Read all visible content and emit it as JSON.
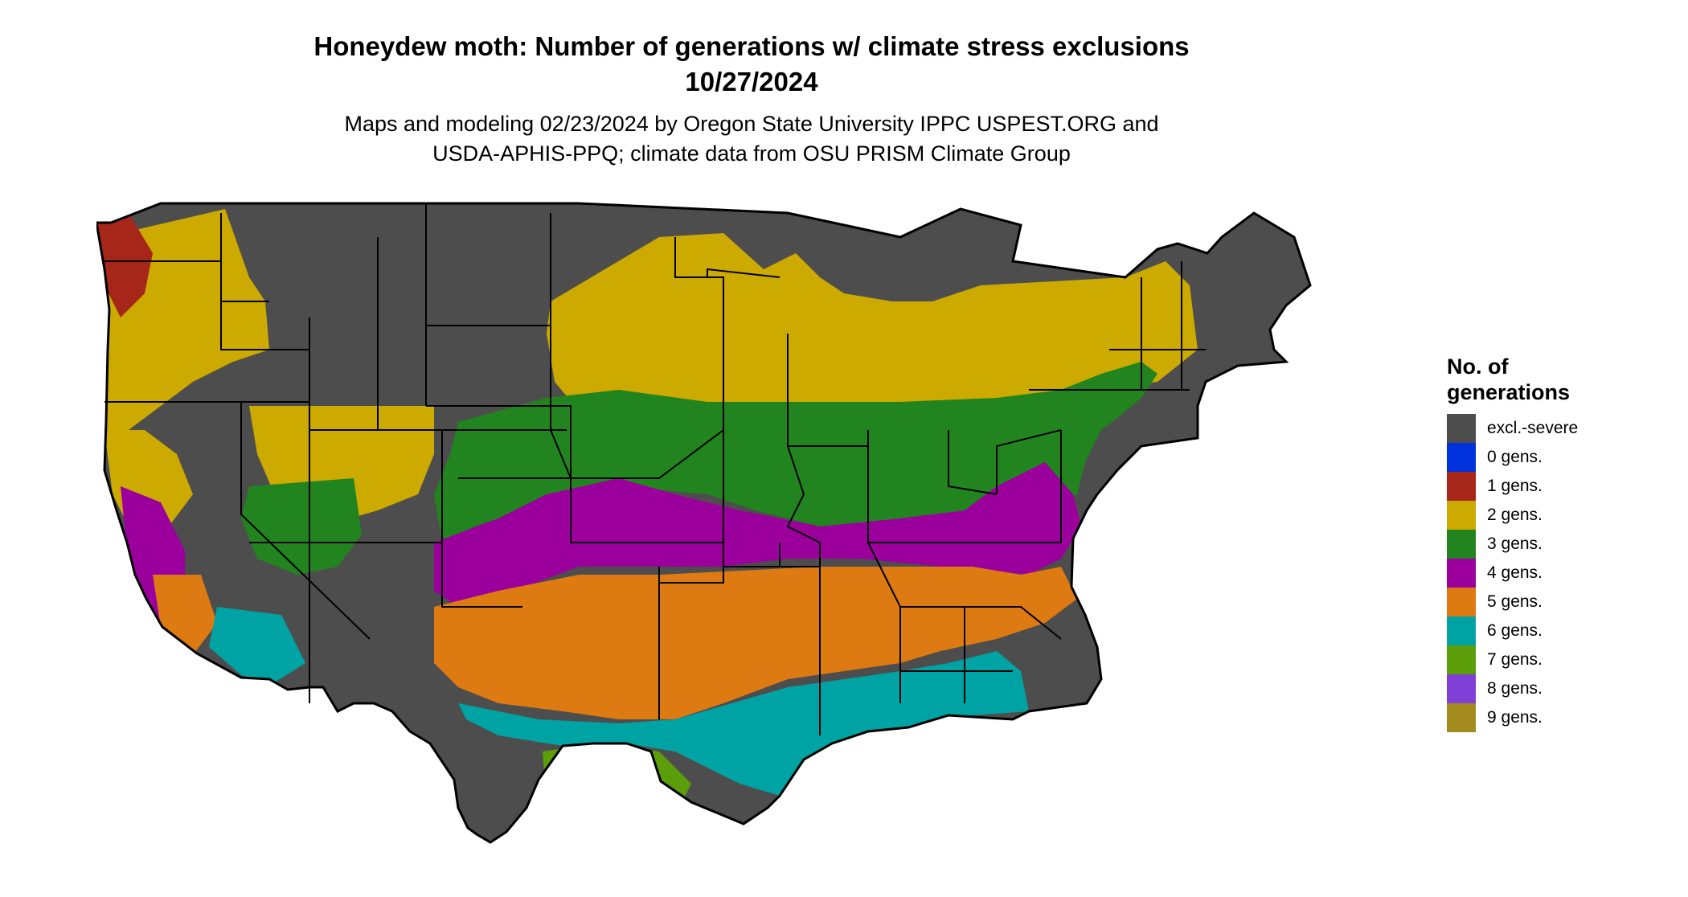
{
  "header": {
    "title": "Honeydew moth: Number of generations w/ climate stress exclusions",
    "date": "10/27/2024",
    "credit_line1": "Maps and modeling 02/23/2024 by Oregon State University IPPC USPEST.ORG and",
    "credit_line2": "USDA-APHIS-PPQ; climate data from OSU PRISM Climate Group"
  },
  "legend": {
    "title_line1": "No. of",
    "title_line2": "generations",
    "items": [
      {
        "label": "excl.-severe",
        "color": "#4d4d4d"
      },
      {
        "label": "0 gens.",
        "color": "#0033dd"
      },
      {
        "label": "1 gens.",
        "color": "#a6261a"
      },
      {
        "label": "2 gens.",
        "color": "#ccaa00"
      },
      {
        "label": "3 gens.",
        "color": "#22841f"
      },
      {
        "label": "4 gens.",
        "color": "#9c009c"
      },
      {
        "label": "5 gens.",
        "color": "#dd7a12"
      },
      {
        "label": "6 gens.",
        "color": "#00a3a3"
      },
      {
        "label": "7 gens.",
        "color": "#5c9e0a"
      },
      {
        "label": "8 gens.",
        "color": "#8040d8"
      },
      {
        "label": "9 gens.",
        "color": "#a38a1f"
      }
    ]
  }
}
